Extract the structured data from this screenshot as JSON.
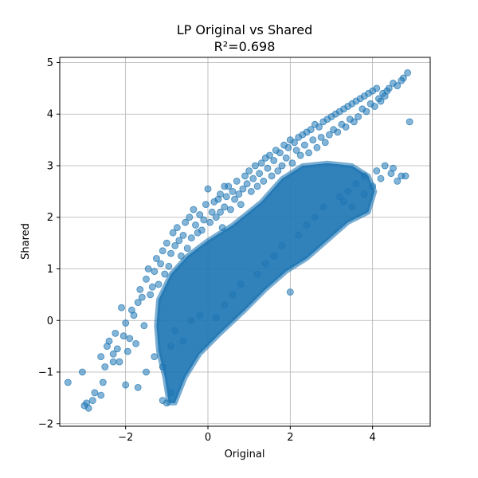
{
  "chart_data": {
    "type": "scatter",
    "title": "LP Original vs Shared",
    "subtitle": "R²=0.698",
    "xlabel": "Original",
    "ylabel": "Shared",
    "xlim": [
      -3.6,
      5.4
    ],
    "ylim": [
      -2.05,
      5.1
    ],
    "xticks": [
      -2,
      0,
      2,
      4
    ],
    "yticks": [
      -2,
      -1,
      0,
      1,
      2,
      3,
      4,
      5
    ],
    "xtick_labels": [
      "−2",
      "0",
      "2",
      "4"
    ],
    "ytick_labels": [
      "−2",
      "−1",
      "0",
      "1",
      "2",
      "3",
      "4",
      "5"
    ],
    "grid": true,
    "marker_color": "#1f77b4",
    "marker_alpha": 0.55,
    "series": [
      {
        "x": [
          -3.4,
          -3.05,
          -3.0,
          -2.95,
          -2.9,
          -2.8,
          -2.75,
          -2.6,
          -2.55,
          -2.5,
          -2.45,
          -2.4,
          -2.3,
          -2.25,
          -2.2,
          -2.15,
          -2.1,
          -2.05,
          -2.0,
          -1.95,
          -1.9,
          -1.85,
          -1.8,
          -1.75,
          -1.7,
          -1.65,
          -1.6,
          -1.55,
          -1.5,
          -1.45,
          -1.4,
          -1.35,
          -1.3,
          -1.25,
          -1.2,
          -1.15,
          -1.1,
          -1.05,
          -1.0,
          -0.95,
          -0.9,
          -0.85,
          -0.8,
          -0.75,
          -0.7,
          -0.65,
          -0.6,
          -0.55,
          -0.5,
          -0.45,
          -0.4,
          -0.35,
          -0.3,
          -0.25,
          -0.2,
          -0.15,
          -0.1,
          -0.05,
          0.0,
          0.05,
          0.1,
          0.15,
          0.2,
          0.25,
          0.3,
          0.35,
          0.4,
          0.45,
          0.5,
          0.55,
          0.6,
          0.65,
          0.7,
          0.75,
          0.8,
          0.85,
          0.9,
          0.95,
          1.0,
          1.05,
          1.1,
          1.15,
          1.2,
          1.25,
          1.3,
          1.35,
          1.4,
          1.45,
          1.5,
          1.55,
          1.6,
          1.65,
          1.7,
          1.75,
          1.8,
          1.85,
          1.9,
          1.95,
          2.0,
          2.05,
          2.1,
          2.15,
          2.2,
          2.25,
          2.3,
          2.35,
          2.4,
          2.45,
          2.5,
          2.55,
          2.6,
          2.65,
          2.7,
          2.75,
          2.8,
          2.85,
          2.9,
          2.95,
          3.0,
          3.05,
          3.1,
          3.15,
          3.2,
          3.25,
          3.3,
          3.35,
          3.4,
          3.45,
          3.5,
          3.55,
          3.6,
          3.65,
          3.7,
          3.75,
          3.8,
          3.85,
          3.9,
          3.95,
          4.0,
          4.05,
          4.1,
          4.15,
          4.2,
          4.25,
          4.3,
          4.35,
          4.4,
          4.5,
          4.6,
          4.7,
          4.75,
          4.85,
          4.9,
          -2.6,
          -2.3,
          -2.0,
          -1.7,
          -1.5,
          -1.3,
          -1.1,
          -0.9,
          -0.8,
          -0.6,
          -0.4,
          -0.2,
          0.2,
          0.4,
          0.6,
          0.8,
          1.2,
          1.4,
          1.6,
          1.8,
          2.2,
          2.4,
          2.6,
          2.8,
          3.2,
          3.4,
          3.6,
          3.8,
          4.1,
          4.3,
          4.5,
          4.7,
          -1.0,
          -0.9,
          -1.1,
          0.4,
          0.3,
          2.0,
          3.3,
          3.5,
          3.8,
          4.0,
          4.2,
          4.45,
          4.6,
          4.8
        ],
        "y": [
          -1.2,
          -1.0,
          -1.65,
          -1.6,
          -1.7,
          -1.55,
          -1.4,
          -0.7,
          -1.2,
          -0.9,
          -0.5,
          -0.4,
          -0.65,
          -0.25,
          -0.55,
          -0.8,
          0.25,
          -0.3,
          -0.05,
          -0.6,
          -0.35,
          0.2,
          0.1,
          -0.45,
          0.35,
          0.6,
          0.45,
          -0.1,
          0.8,
          1.0,
          0.5,
          0.65,
          0.95,
          1.2,
          0.7,
          1.1,
          1.35,
          0.9,
          1.5,
          1.05,
          1.3,
          1.7,
          1.45,
          1.8,
          1.55,
          1.25,
          1.65,
          1.9,
          1.4,
          2.0,
          1.6,
          2.15,
          1.85,
          1.7,
          2.05,
          1.75,
          1.95,
          2.25,
          2.55,
          1.9,
          2.1,
          2.3,
          2.0,
          2.35,
          2.45,
          1.8,
          2.2,
          2.4,
          2.6,
          2.15,
          2.5,
          2.35,
          2.7,
          2.45,
          2.25,
          2.55,
          2.8,
          2.65,
          2.9,
          2.5,
          2.75,
          3.0,
          2.6,
          2.85,
          3.05,
          2.7,
          3.15,
          2.95,
          3.2,
          2.8,
          3.1,
          3.3,
          2.9,
          3.25,
          3.0,
          3.4,
          3.15,
          3.35,
          3.5,
          3.05,
          3.45,
          3.3,
          3.55,
          3.2,
          3.6,
          3.4,
          3.65,
          3.25,
          3.7,
          3.5,
          3.8,
          3.35,
          3.75,
          3.55,
          3.85,
          3.45,
          3.9,
          3.6,
          3.95,
          3.7,
          4.0,
          3.65,
          4.05,
          3.8,
          4.1,
          3.75,
          4.15,
          3.9,
          4.2,
          3.85,
          4.25,
          3.95,
          4.3,
          4.1,
          4.35,
          4.05,
          4.4,
          4.2,
          4.45,
          4.15,
          4.5,
          4.3,
          4.25,
          4.4,
          4.35,
          4.45,
          4.5,
          4.6,
          4.55,
          4.65,
          4.7,
          4.8,
          3.85,
          -1.45,
          -0.8,
          -1.25,
          -1.3,
          -1.0,
          -0.7,
          -0.9,
          -0.5,
          -0.2,
          -0.4,
          0.0,
          0.1,
          0.05,
          0.3,
          0.5,
          0.7,
          0.9,
          1.1,
          1.25,
          1.45,
          1.65,
          1.85,
          2.0,
          2.2,
          2.4,
          2.5,
          2.65,
          2.8,
          2.9,
          3.0,
          2.95,
          2.8,
          -1.6,
          -1.4,
          -1.55,
          2.6,
          2.1,
          0.55,
          2.3,
          2.2,
          2.45,
          2.6,
          2.75,
          2.85,
          2.7,
          2.8
        ]
      }
    ]
  }
}
